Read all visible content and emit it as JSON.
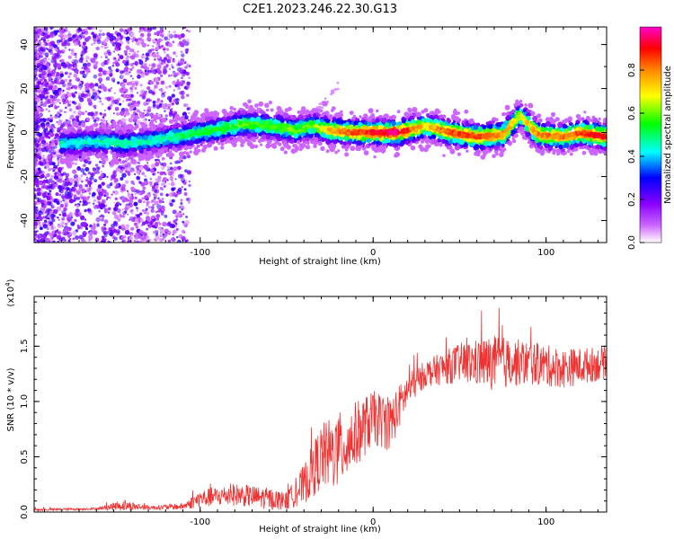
{
  "figure": {
    "title": "C2E1.2023.246.22.30.G13"
  },
  "chart_data": [
    {
      "type": "heatmap",
      "title": "C2E1.2023.246.22.30.G13",
      "xlabel": "Height of straight line (km)",
      "ylabel": "Frequency (Hz)",
      "xlim": [
        -196,
        135
      ],
      "ylim": [
        -50,
        48
      ],
      "x_ticks": [
        -100,
        0,
        100
      ],
      "y_ticks": [
        -40,
        -20,
        0,
        20,
        40
      ],
      "grid": false,
      "colorbar": {
        "label": "Normalized spectral amplitude",
        "range": [
          0.0,
          1.0
        ],
        "ticks": [
          0.0,
          0.2,
          0.4,
          0.6,
          0.8
        ],
        "colors": [
          "#ffffff",
          "#9933ff",
          "#0000ff",
          "#00ffff",
          "#00ff00",
          "#ffff00",
          "#ff8800",
          "#ff0000",
          "#ff00cc"
        ]
      },
      "ridge": [
        {
          "x": -175,
          "f": -5,
          "a": 0.45
        },
        {
          "x": -160,
          "f": -4,
          "a": 0.45
        },
        {
          "x": -145,
          "f": -5,
          "a": 0.5
        },
        {
          "x": -130,
          "f": -4,
          "a": 0.45
        },
        {
          "x": -115,
          "f": -2,
          "a": 0.5
        },
        {
          "x": -100,
          "f": 0,
          "a": 0.55
        },
        {
          "x": -85,
          "f": 2,
          "a": 0.55
        },
        {
          "x": -75,
          "f": 4,
          "a": 0.6
        },
        {
          "x": -60,
          "f": 3,
          "a": 0.6
        },
        {
          "x": -45,
          "f": 1,
          "a": 0.6
        },
        {
          "x": -35,
          "f": 3,
          "a": 0.6
        },
        {
          "x": -25,
          "f": 1,
          "a": 0.75
        },
        {
          "x": -10,
          "f": 0,
          "a": 0.85
        },
        {
          "x": 0,
          "f": 0,
          "a": 0.9
        },
        {
          "x": 15,
          "f": 0,
          "a": 0.95
        },
        {
          "x": 30,
          "f": 3,
          "a": 0.7
        },
        {
          "x": 45,
          "f": 0,
          "a": 0.85
        },
        {
          "x": 60,
          "f": -2,
          "a": 0.85
        },
        {
          "x": 75,
          "f": -1,
          "a": 0.8
        },
        {
          "x": 85,
          "f": 8,
          "a": 0.65
        },
        {
          "x": 95,
          "f": -1,
          "a": 0.8
        },
        {
          "x": 110,
          "f": -2,
          "a": 0.8
        },
        {
          "x": 120,
          "f": 0,
          "a": 0.85
        },
        {
          "x": 135,
          "f": -2,
          "a": 0.9
        }
      ]
    },
    {
      "type": "line",
      "xlabel": "Height of straight line (km)",
      "ylabel": "SNR (10 * v/v)",
      "multiplier": "(x10",
      "multiplier_exp": "4",
      "multiplier_close": ")",
      "xlim": [
        -196,
        135
      ],
      "ylim": [
        0.0,
        1.95
      ],
      "x_ticks": [
        -100,
        0,
        100
      ],
      "y_ticks": [
        0.0,
        0.5,
        1.0,
        1.5
      ],
      "y_tick_labels": [
        "0.0",
        "0.5",
        "1.0",
        "1.5"
      ],
      "grid": false,
      "series": [
        {
          "color": "#ee3333",
          "envelope": [
            {
              "x": -196,
              "base": 0.02,
              "spread": 0.01
            },
            {
              "x": -160,
              "base": 0.03,
              "spread": 0.01
            },
            {
              "x": -145,
              "base": 0.06,
              "spread": 0.05
            },
            {
              "x": -130,
              "base": 0.04,
              "spread": 0.02
            },
            {
              "x": -110,
              "base": 0.05,
              "spread": 0.03
            },
            {
              "x": -100,
              "base": 0.12,
              "spread": 0.08
            },
            {
              "x": -80,
              "base": 0.16,
              "spread": 0.1
            },
            {
              "x": -60,
              "base": 0.12,
              "spread": 0.1
            },
            {
              "x": -50,
              "base": 0.1,
              "spread": 0.08
            },
            {
              "x": -40,
              "base": 0.25,
              "spread": 0.18
            },
            {
              "x": -30,
              "base": 0.5,
              "spread": 0.3
            },
            {
              "x": -20,
              "base": 0.55,
              "spread": 0.35
            },
            {
              "x": -10,
              "base": 0.7,
              "spread": 0.3
            },
            {
              "x": 0,
              "base": 0.85,
              "spread": 0.25
            },
            {
              "x": 10,
              "base": 0.8,
              "spread": 0.25
            },
            {
              "x": 20,
              "base": 1.1,
              "spread": 0.15
            },
            {
              "x": 30,
              "base": 1.25,
              "spread": 0.12
            },
            {
              "x": 50,
              "base": 1.35,
              "spread": 0.18
            },
            {
              "x": 70,
              "base": 1.35,
              "spread": 0.25
            },
            {
              "x": 90,
              "base": 1.35,
              "spread": 0.2
            },
            {
              "x": 110,
              "base": 1.3,
              "spread": 0.18
            },
            {
              "x": 135,
              "base": 1.35,
              "spread": 0.15
            }
          ]
        }
      ]
    }
  ]
}
